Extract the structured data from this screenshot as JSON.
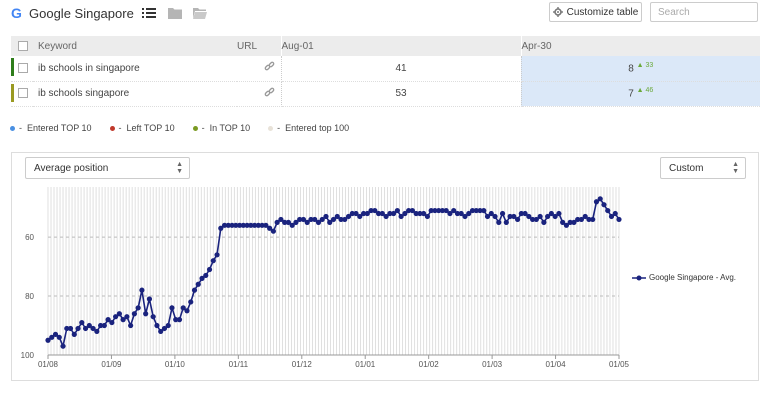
{
  "header": {
    "title": "Google Singapore",
    "logo_letter": "G",
    "customize_label": "Customize table",
    "search_placeholder": "Search"
  },
  "table": {
    "columns": [
      "Keyword",
      "URL",
      "Aug-01",
      "Apr-30"
    ],
    "rows": [
      {
        "keyword": "ib schools in singapore",
        "bar_color": "#2e7d1a",
        "aug": "41",
        "apr": "8",
        "change": "33"
      },
      {
        "keyword": "ib schools singapore",
        "bar_color": "#9a9a22",
        "aug": "53",
        "apr": "7",
        "change": "46"
      }
    ]
  },
  "legend": [
    {
      "label": "Entered TOP 10",
      "color": "#4a90e2"
    },
    {
      "label": "Left TOP 10",
      "color": "#c0392b"
    },
    {
      "label": "In TOP 10",
      "color": "#7a9a22"
    },
    {
      "label": "Entered top 100",
      "color": "#e8e2d8"
    }
  ],
  "controls": {
    "metric_select": "Average position",
    "range_select": "Custom"
  },
  "chart_data": {
    "type": "line",
    "title": "",
    "xlabel": "",
    "ylabel": "",
    "y_reversed": true,
    "ylim": [
      100,
      43
    ],
    "yticks": [
      60,
      80,
      100
    ],
    "x_tick_labels": [
      "01/08",
      "01/09",
      "01/10",
      "01/11",
      "01/12",
      "01/01",
      "01/02",
      "01/03",
      "01/04",
      "01/05"
    ],
    "series": [
      {
        "name": "Google Singapore - Avg.",
        "color": "#1a237e",
        "values": [
          95,
          94,
          93,
          94,
          97,
          91,
          91,
          93,
          91,
          89,
          91,
          90,
          91,
          92,
          90,
          90,
          88,
          89,
          87,
          86,
          88,
          87,
          90,
          86,
          84,
          78,
          86,
          81,
          87,
          90,
          92,
          91,
          90,
          84,
          88,
          88,
          84,
          85,
          82,
          78,
          76,
          74,
          73,
          71,
          68,
          66,
          57,
          56,
          56,
          56,
          56,
          56,
          56,
          56,
          56,
          56,
          56,
          56,
          56,
          57,
          58,
          55,
          54,
          55,
          55,
          56,
          55,
          54,
          54,
          55,
          54,
          54,
          55,
          54,
          53,
          55,
          54,
          53,
          54,
          54,
          53,
          52,
          52,
          53,
          52,
          52,
          51,
          51,
          52,
          52,
          53,
          52,
          52,
          51,
          53,
          52,
          51,
          51,
          52,
          52,
          52,
          53,
          51,
          51,
          51,
          51,
          51,
          52,
          51,
          52,
          52,
          53,
          52,
          51,
          51,
          51,
          51,
          53,
          52,
          53,
          55,
          52,
          55,
          53,
          53,
          54,
          52,
          52,
          53,
          54,
          54,
          53,
          55,
          53,
          52,
          53,
          52,
          55,
          56,
          55,
          55,
          54,
          54,
          53,
          54,
          54,
          48,
          47,
          49,
          51,
          53,
          52,
          54
        ]
      }
    ],
    "series_legend_label": "Google Singapore - Avg.",
    "grid": true
  }
}
